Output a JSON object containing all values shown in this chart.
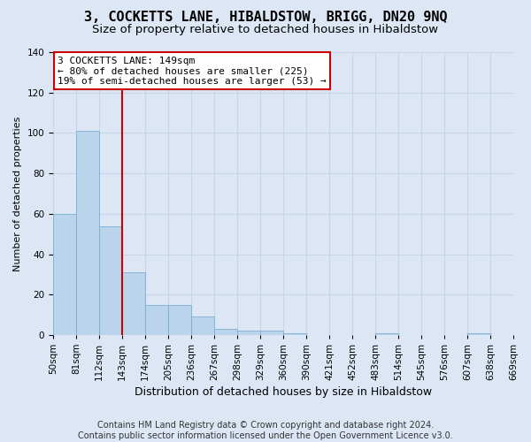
{
  "title": "3, COCKETTS LANE, HIBALDSTOW, BRIGG, DN20 9NQ",
  "subtitle": "Size of property relative to detached houses in Hibaldstow",
  "xlabel": "Distribution of detached houses by size in Hibaldstow",
  "ylabel": "Number of detached properties",
  "bar_values": [
    60,
    101,
    54,
    31,
    15,
    15,
    9,
    3,
    2,
    2,
    1,
    0,
    0,
    0,
    1,
    0,
    0,
    0,
    1,
    0
  ],
  "bin_labels": [
    "50sqm",
    "81sqm",
    "112sqm",
    "143sqm",
    "174sqm",
    "205sqm",
    "236sqm",
    "267sqm",
    "298sqm",
    "329sqm",
    "360sqm",
    "390sqm",
    "421sqm",
    "452sqm",
    "483sqm",
    "514sqm",
    "545sqm",
    "576sqm",
    "607sqm",
    "638sqm",
    "669sqm"
  ],
  "bar_color": "#bad4eb",
  "bar_edge_color": "#7aafd4",
  "grid_color": "#c8d4e8",
  "background_color": "#dce6f5",
  "vline_x": 3,
  "vline_color": "#cc0000",
  "annotation_text": "3 COCKETTS LANE: 149sqm\n← 80% of detached houses are smaller (225)\n19% of semi-detached houses are larger (53) →",
  "annotation_box_color": "#ffffff",
  "annotation_box_edge": "#cc0000",
  "ylim": [
    0,
    140
  ],
  "yticks": [
    0,
    20,
    40,
    60,
    80,
    100,
    120,
    140
  ],
  "footer_text": "Contains HM Land Registry data © Crown copyright and database right 2024.\nContains public sector information licensed under the Open Government Licence v3.0.",
  "title_fontsize": 11,
  "subtitle_fontsize": 9.5,
  "xlabel_fontsize": 9,
  "ylabel_fontsize": 8,
  "tick_fontsize": 7.5,
  "footer_fontsize": 7
}
